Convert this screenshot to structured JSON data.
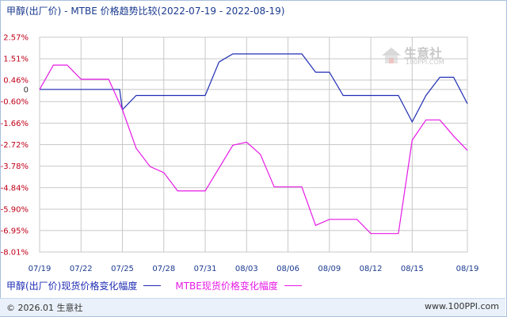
{
  "title": "甲醇(出厂价) - MTBE 价格趋势比较(2022-07-19 - 2022-08-19)",
  "watermark": {
    "name": "生意社",
    "url": "100PPI.COM"
  },
  "footer": {
    "copyright": "© 2026.01 生意社",
    "url": "www.100PPI.com"
  },
  "colors": {
    "series1": "#1f2db3",
    "series2": "#e619e6",
    "grid": "#c8c8c8",
    "ytick": "#c0001a",
    "xtick": "#1a3a8f"
  },
  "chart_data": {
    "type": "line",
    "title": "甲醇(出厂价) - MTBE 价格趋势比较(2022-07-19 - 2022-08-19)",
    "ytick_labels": [
      "2.57%",
      "1.51%",
      "0.46%",
      "0",
      "-0.60%",
      "-1.66%",
      "-2.72%",
      "-3.78%",
      "-4.84%",
      "-5.90%",
      "-6.95%",
      "-8.01%"
    ],
    "ytick_values": [
      2.57,
      1.51,
      0.46,
      0,
      -0.6,
      -1.66,
      -2.72,
      -3.78,
      -4.84,
      -5.9,
      -6.95,
      -8.01
    ],
    "ylim": [
      -8.01,
      2.57
    ],
    "xtick_labels": [
      "07/19",
      "07/22",
      "07/25",
      "07/28",
      "07/31",
      "08/03",
      "08/06",
      "08/09",
      "08/12",
      "08/15",
      "08/19"
    ],
    "x_days": [
      0,
      3,
      6,
      9,
      12,
      15,
      18,
      21,
      24,
      27,
      31
    ],
    "xlim": [
      0,
      31
    ],
    "grid": true,
    "legend_placement": "bottom",
    "series": [
      {
        "name": "甲醇(出厂价)现货价格变化幅度",
        "x": [
          0,
          5.8,
          6.0,
          7.0,
          12.0,
          13.0,
          14.0,
          19.0,
          20.0,
          21.0,
          22.0,
          26.0,
          27.0,
          28.0,
          29.0,
          30.0,
          31.0
        ],
        "y": [
          0.0,
          0.0,
          -1.0,
          -0.3,
          -0.3,
          1.35,
          1.75,
          1.75,
          0.85,
          0.85,
          -0.3,
          -0.3,
          -1.6,
          -0.3,
          0.6,
          0.6,
          -0.7
        ]
      },
      {
        "name": "MTBE现货价格变化幅度",
        "x": [
          0,
          1.0,
          2.0,
          3.0,
          5.0,
          6.0,
          7.0,
          8.0,
          9.0,
          10.0,
          12.0,
          14.0,
          15.0,
          16.0,
          17.0,
          19.0,
          20.0,
          21.0,
          23.0,
          24.0,
          26.0,
          27.0,
          28.0,
          29.0,
          30.0,
          31.0
        ],
        "y": [
          0.0,
          1.2,
          1.2,
          0.5,
          0.5,
          -1.0,
          -2.9,
          -3.8,
          -4.1,
          -5.0,
          -5.0,
          -2.75,
          -2.6,
          -3.2,
          -4.8,
          -4.8,
          -6.7,
          -6.4,
          -6.4,
          -7.1,
          -7.1,
          -2.5,
          -1.5,
          -1.5,
          -2.3,
          -3.0
        ]
      }
    ]
  }
}
